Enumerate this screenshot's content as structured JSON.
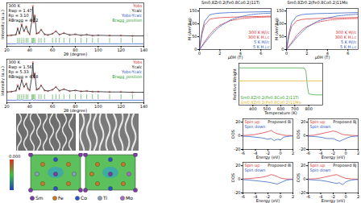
{
  "chart_data": [
    {
      "type": "line",
      "xlabel": "2θ (degree)",
      "ylabel": "Intensity (a.u.)",
      "annotations": [
        "300 K",
        "Rwp = 1.47",
        "Rp = 3.10",
        "RBragg = 4.12"
      ],
      "x": [
        20,
        24,
        28,
        29.5,
        31,
        33,
        35,
        37,
        38.5,
        40,
        42,
        42.8,
        43.5,
        44.5,
        46,
        48,
        50,
        53,
        56,
        60,
        63,
        66,
        70,
        75,
        80,
        85,
        90,
        95,
        100,
        110,
        120,
        130,
        140
      ],
      "xlim": [
        20,
        140
      ],
      "xticks": [
        20,
        40,
        60,
        80,
        100,
        120,
        140
      ],
      "ylim": [
        -28,
        110
      ],
      "tick_labels": "x",
      "legend": "top-right",
      "series": [
        {
          "name": "Yobs",
          "color": "#d62728",
          "type": "scatter",
          "marker": "circle",
          "values": [
            6,
            7,
            9,
            30,
            12,
            42,
            20,
            35,
            18,
            10,
            55,
            100,
            48,
            70,
            12,
            15,
            25,
            10,
            8,
            12,
            20,
            9,
            14,
            8,
            10,
            7,
            9,
            6,
            7,
            6,
            6,
            5,
            5
          ]
        },
        {
          "name": "Ycalc",
          "color": "#000000",
          "values": [
            6,
            7,
            9,
            29,
            12,
            41,
            20,
            35,
            18,
            10,
            54,
            98,
            49,
            69,
            12,
            15,
            25,
            10,
            8,
            12,
            20,
            9,
            14,
            8,
            10,
            7,
            9,
            6,
            7,
            6,
            6,
            5,
            5
          ]
        },
        {
          "name": "Yobs-Ycalc",
          "color": "#1f4fbf",
          "values": [
            -20,
            -20,
            -20,
            -19,
            -20,
            -19,
            -20,
            -20,
            -20,
            -20,
            -19,
            -18,
            -21,
            -19,
            -20,
            -20,
            -20,
            -20,
            -20,
            -20,
            -20,
            -20,
            -20,
            -20,
            -20,
            -20,
            -20,
            -20,
            -20,
            -20,
            -20,
            -20,
            -20
          ]
        },
        {
          "name": "Bragg_position",
          "color": "#2ca02c",
          "type": "scatter",
          "marker": "bar",
          "x": [
            29.5,
            31,
            33,
            35,
            37,
            38.5,
            42,
            42.8,
            43.5,
            44.5,
            48,
            50,
            53,
            60,
            63,
            66,
            70,
            75,
            80,
            85,
            90,
            95,
            100,
            110,
            120,
            130
          ],
          "values": [
            -9,
            -9,
            -9,
            -9,
            -9,
            -9,
            -9,
            -9,
            -9,
            -9,
            -9,
            -9,
            -9,
            -9,
            -9,
            -9,
            -9,
            -9,
            -9,
            -9,
            -9,
            -9,
            -9,
            -9,
            -9,
            -9
          ]
        }
      ]
    },
    {
      "type": "line",
      "xlabel": "2θ (degree)",
      "ylabel": "Intensity (a.u.)",
      "annotations": [
        "300 K",
        "Rwp = 1.56",
        "Rp = 5.33",
        "RBragg = 4.18"
      ],
      "x": [
        20,
        24,
        28,
        29.5,
        31,
        33,
        35,
        37,
        38.5,
        40,
        42,
        42.8,
        43.5,
        44.5,
        46,
        48,
        50,
        53,
        56,
        60,
        63,
        66,
        70,
        75,
        80,
        85,
        90,
        95,
        100,
        110,
        120,
        130,
        140
      ],
      "xlim": [
        20,
        140
      ],
      "xticks": [
        20,
        40,
        60,
        80,
        100,
        120,
        140
      ],
      "ylim": [
        -28,
        110
      ],
      "tick_labels": "x",
      "legend": "top-right",
      "series": [
        {
          "name": "Yobs",
          "color": "#d62728",
          "type": "scatter",
          "marker": "circle",
          "values": [
            6,
            7,
            10,
            28,
            14,
            45,
            22,
            33,
            16,
            11,
            58,
            100,
            52,
            66,
            13,
            16,
            27,
            11,
            9,
            13,
            22,
            10,
            15,
            9,
            11,
            8,
            9,
            7,
            7,
            6,
            6,
            5,
            5
          ]
        },
        {
          "name": "Ycalc",
          "color": "#000000",
          "values": [
            6,
            7,
            10,
            27,
            14,
            44,
            22,
            33,
            16,
            11,
            57,
            99,
            53,
            65,
            13,
            16,
            27,
            11,
            9,
            13,
            22,
            10,
            15,
            9,
            11,
            8,
            9,
            7,
            7,
            6,
            6,
            5,
            5
          ]
        },
        {
          "name": "Yobs-Ycalc",
          "color": "#1f4fbf",
          "values": [
            -20,
            -20,
            -20,
            -19,
            -20,
            -19,
            -20,
            -20,
            -20,
            -20,
            -19,
            -19,
            -21,
            -19,
            -20,
            -20,
            -20,
            -20,
            -20,
            -20,
            -20,
            -20,
            -20,
            -20,
            -20,
            -20,
            -20,
            -20,
            -20,
            -20,
            -20,
            -20,
            -20
          ]
        },
        {
          "name": "Bragg_position",
          "color": "#2ca02c",
          "type": "scatter",
          "marker": "bar",
          "x": [
            29.5,
            31,
            33,
            35,
            37,
            38.5,
            42,
            42.8,
            43.5,
            44.5,
            48,
            50,
            53,
            60,
            63,
            66,
            70,
            75,
            80,
            85,
            90,
            95,
            100,
            110,
            120,
            130
          ],
          "values": [
            -9,
            -9,
            -9,
            -9,
            -9,
            -9,
            -9,
            -9,
            -9,
            -9,
            -9,
            -9,
            -9,
            -9,
            -9,
            -9,
            -9,
            -9,
            -9,
            -9,
            -9,
            -9,
            -9,
            -9,
            -9,
            -9
          ]
        }
      ]
    },
    {
      "type": "line",
      "title": "Sm0.8Zr0.2(Fe0.8Co0.2)11Ti",
      "xlabel": "μ0H (T)",
      "ylabel": "M (Am²/kg)",
      "x": [
        0,
        0.25,
        0.5,
        1,
        1.5,
        2,
        3,
        4,
        5,
        6,
        7
      ],
      "xlim": [
        0,
        7
      ],
      "xticks": [
        0,
        2,
        4,
        6
      ],
      "ylim": [
        0,
        160
      ],
      "yticks": [
        0,
        50,
        100,
        150
      ],
      "legend": "bottom-right",
      "series": [
        {
          "name": "300 K H//c",
          "color": "#d62728",
          "values": [
            0,
            60,
            95,
            118,
            122,
            124,
            126,
            127,
            128,
            129,
            130
          ]
        },
        {
          "name": "300 K H⊥c",
          "color": "#d62728",
          "line_style": "dashed",
          "values": [
            0,
            15,
            30,
            58,
            80,
            95,
            112,
            120,
            124,
            126,
            127
          ]
        },
        {
          "name": "5 K H//c",
          "color": "#1f4fbf",
          "values": [
            0,
            70,
            110,
            135,
            140,
            142,
            144,
            145,
            146,
            147,
            148
          ]
        },
        {
          "name": "5 K H⊥c",
          "color": "#1f4fbf",
          "line_style": "dashed",
          "values": [
            0,
            12,
            25,
            50,
            72,
            90,
            115,
            128,
            136,
            140,
            142
          ]
        }
      ]
    },
    {
      "type": "line",
      "title": "Sm0.8Zr0.2(Fe0.8Co0.2)11Mo",
      "xlabel": "μ0H (T)",
      "ylabel": "M (Am²/kg)",
      "x": [
        0,
        0.25,
        0.5,
        1,
        1.5,
        2,
        3,
        4,
        5,
        6,
        7
      ],
      "xlim": [
        0,
        7
      ],
      "xticks": [
        0,
        2,
        4,
        6
      ],
      "ylim": [
        0,
        160
      ],
      "yticks": [
        0,
        50,
        100,
        150
      ],
      "legend": "bottom-right",
      "series": [
        {
          "name": "300 K H//c",
          "color": "#d62728",
          "values": [
            0,
            55,
            90,
            112,
            117,
            119,
            121,
            122,
            123,
            124,
            125
          ]
        },
        {
          "name": "300 K H⊥c",
          "color": "#d62728",
          "line_style": "dashed",
          "values": [
            0,
            14,
            28,
            55,
            76,
            90,
            106,
            114,
            118,
            120,
            121
          ]
        },
        {
          "name": "5 K H//c",
          "color": "#1f4fbf",
          "values": [
            0,
            65,
            105,
            130,
            136,
            138,
            140,
            141,
            142,
            143,
            144
          ]
        },
        {
          "name": "5 K H⊥c",
          "color": "#1f4fbf",
          "line_style": "dashed",
          "values": [
            0,
            11,
            23,
            47,
            68,
            86,
            110,
            123,
            131,
            135,
            138
          ]
        }
      ]
    },
    {
      "type": "line",
      "xlabel": "Temperature (K)",
      "ylabel": "Relative Weight",
      "x": [
        300,
        400,
        500,
        600,
        700,
        750,
        770,
        780,
        790,
        800,
        850,
        900
      ],
      "xlim": [
        300,
        900
      ],
      "xticks": [
        400,
        500,
        600,
        700,
        800
      ],
      "ylim": [
        0.6,
        1.05
      ],
      "tick_labels": "x",
      "legend": "bottom-left",
      "series": [
        {
          "name": "Sm0.8Zr0.2(Fe0.8Co0.2)11Ti",
          "color": "#2ca02c",
          "values": [
            1,
            1,
            1,
            1,
            1,
            1,
            0.995,
            0.96,
            0.8,
            0.72,
            0.71,
            0.71
          ]
        },
        {
          "name": "Sm0.8Zr0.2(Fe0.8Co0.2)11Mo",
          "color": "#e0b020",
          "values": [
            0.86,
            0.86,
            0.86,
            0.86,
            0.86,
            0.86,
            0.86,
            0.86,
            0.86,
            0.86,
            0.86,
            0.86
          ]
        }
      ]
    },
    {
      "type": "line",
      "xlabel": "Energy (eV)",
      "ylabel": "DOS",
      "annotations": [
        "Proposed 8i"
      ],
      "x": [
        -6,
        -5,
        -4,
        -3,
        -2,
        -1.5,
        -1,
        -0.5,
        0,
        0.5,
        1,
        1.5,
        2
      ],
      "xlim": [
        -6,
        2
      ],
      "xticks": [
        -6,
        -4,
        -2,
        0,
        2
      ],
      "ylim": [
        -20,
        25
      ],
      "yticks": [
        -20,
        0,
        20
      ],
      "legend": "top-left",
      "series": [
        {
          "name": "Spin up",
          "color": "#d62728",
          "values": [
            0.5,
            1,
            2,
            4,
            6,
            8,
            5,
            3,
            2,
            1,
            0.5,
            0.5,
            0.3
          ]
        },
        {
          "name": "Spin down",
          "color": "#1f4fbf",
          "values": [
            -0.5,
            -1,
            -2,
            -3,
            -5,
            -4,
            -7,
            -5,
            -6,
            -2,
            -1,
            -0.5,
            -0.3
          ]
        }
      ]
    },
    {
      "type": "line",
      "xlabel": "Energy (eV)",
      "ylabel": "DOS",
      "annotations": [
        "Proposed 8j"
      ],
      "x": [
        -6,
        -5,
        -4,
        -3,
        -2,
        -1.5,
        -1,
        -0.5,
        0,
        0.5,
        1,
        1.5,
        2
      ],
      "xlim": [
        -6,
        2
      ],
      "xticks": [
        -6,
        -4,
        -2,
        0,
        2
      ],
      "ylim": [
        -20,
        25
      ],
      "yticks": [
        -20,
        0,
        20
      ],
      "legend": "top-left",
      "series": [
        {
          "name": "Spin up",
          "color": "#d62728",
          "values": [
            0.4,
            1,
            3,
            5,
            7,
            6,
            4,
            2,
            1.5,
            1,
            0.6,
            0.4,
            0.3
          ]
        },
        {
          "name": "Spin down",
          "color": "#1f4fbf",
          "values": [
            -0.4,
            -1,
            -2,
            -4,
            -4,
            -6,
            -8,
            -6,
            -4,
            -2,
            -1,
            -0.6,
            -0.3
          ]
        }
      ]
    },
    {
      "type": "line",
      "xlabel": "Energy (eV)",
      "ylabel": "DOS",
      "annotations": [
        "Proposed 8i"
      ],
      "x": [
        -6,
        -5,
        -4,
        -3,
        -2,
        -1.5,
        -1,
        -0.5,
        0,
        0.5,
        1,
        1.5,
        2
      ],
      "xlim": [
        -6,
        2
      ],
      "xticks": [
        -6,
        -4,
        -2,
        0,
        2
      ],
      "ylim": [
        -20,
        25
      ],
      "yticks": [
        -20,
        0,
        20
      ],
      "legend": "top-left",
      "series": [
        {
          "name": "Spin up",
          "color": "#d62728",
          "values": [
            0.5,
            1.2,
            2,
            3,
            5,
            7,
            6,
            4,
            2,
            1,
            0.5,
            0.4,
            0.3
          ]
        },
        {
          "name": "Spin down",
          "color": "#1f4fbf",
          "values": [
            -0.5,
            -1,
            -2,
            -3,
            -4,
            -5,
            -6,
            -7,
            -5,
            -3,
            -1,
            -0.5,
            -0.3
          ]
        }
      ]
    },
    {
      "type": "line",
      "xlabel": "Energy (eV)",
      "ylabel": "DOS",
      "annotations": [
        "Proposed 8j"
      ],
      "x": [
        -6,
        -5,
        -4,
        -3,
        -2,
        -1.5,
        -1,
        -0.5,
        0,
        0.5,
        1,
        1.5,
        2
      ],
      "xlim": [
        -6,
        2
      ],
      "xticks": [
        -6,
        -4,
        -2,
        0,
        2
      ],
      "ylim": [
        -20,
        25
      ],
      "yticks": [
        -20,
        0,
        20
      ],
      "legend": "top-left",
      "series": [
        {
          "name": "Spin up",
          "color": "#d62728",
          "values": [
            0.3,
            0.8,
            2,
            4,
            6,
            7,
            5,
            3,
            1.5,
            1,
            0.6,
            0.4,
            0.2
          ]
        },
        {
          "name": "Spin down",
          "color": "#1f4fbf",
          "values": [
            -0.3,
            -1,
            -1.5,
            -3,
            -5,
            -6,
            -5,
            -8,
            -4,
            -2,
            -1,
            -0.5,
            -0.3
          ]
        }
      ]
    }
  ],
  "structure": {
    "colorbar_label": "0.000",
    "elements": [
      {
        "name": "Sm",
        "color": "#7b3fa0"
      },
      {
        "name": "Fe",
        "color": "#c8782a"
      },
      {
        "name": "Co",
        "color": "#2b54c8"
      },
      {
        "name": "Ti",
        "color": "#8aa0b8"
      },
      {
        "name": "Mo",
        "color": "#a86ac0"
      }
    ]
  }
}
